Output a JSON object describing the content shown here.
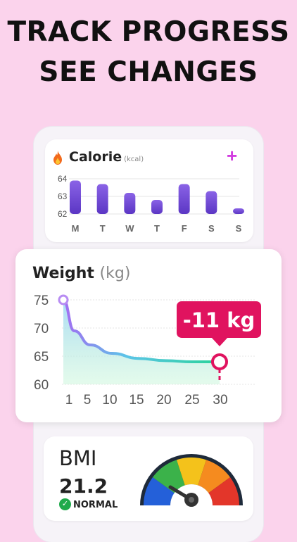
{
  "headline": {
    "line1": "TRACK PROGRESS",
    "line2": "SEE CHANGES"
  },
  "calorie": {
    "title": "Calorie",
    "unit": "(kcal)",
    "add_label": "+",
    "icon": "flame-icon",
    "chart_data": {
      "type": "bar",
      "categories": [
        "M",
        "T",
        "W",
        "T",
        "F",
        "S",
        "S"
      ],
      "values": [
        63.9,
        63.7,
        63.2,
        62.8,
        63.7,
        63.3,
        62.3
      ],
      "ylim": [
        62,
        64
      ],
      "yticks": [
        "64",
        "63",
        "62"
      ],
      "color": "#7b55d8"
    }
  },
  "weight": {
    "title": "Weight",
    "unit": "(kg)",
    "badge": "-11 kg",
    "chart_data": {
      "type": "area",
      "x": [
        1,
        3,
        6,
        10,
        15,
        20,
        25,
        30
      ],
      "y": [
        75,
        69.5,
        67,
        65.5,
        64.6,
        64.2,
        64.0,
        64
      ],
      "ylim": [
        60,
        75
      ],
      "yticks": [
        "75",
        "70",
        "65",
        "60"
      ],
      "xticks": [
        "1",
        "5",
        "10",
        "15",
        "20",
        "25",
        "30"
      ],
      "badge_color": "#e0135f"
    }
  },
  "bmi": {
    "label": "BMI",
    "value": "21.2",
    "status": "NORMAL",
    "status_color": "#1faa4b",
    "gauge_colors": [
      "#2460d9",
      "#3bb24a",
      "#f4c21b",
      "#f58b1f",
      "#e3362a"
    ]
  }
}
